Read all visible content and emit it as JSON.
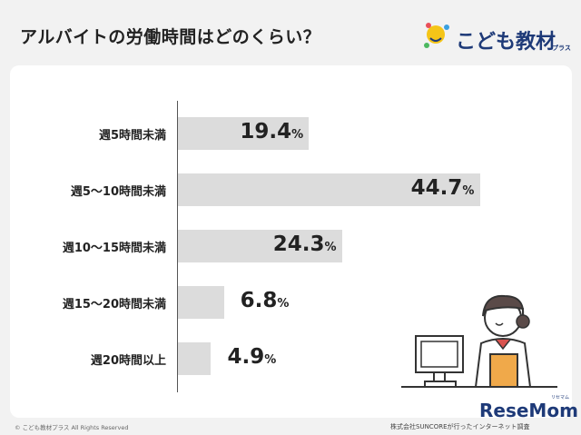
{
  "title": "アルバイトの労働時間はどのくらい？",
  "logo": {
    "text": "こども教材",
    "sub": "プラス"
  },
  "chart_data": {
    "type": "bar",
    "orientation": "horizontal",
    "categories": [
      "週5時間未満",
      "週5〜10時間未満",
      "週10〜15時間未満",
      "週15〜20時間未満",
      "週20時間以上"
    ],
    "values": [
      19.4,
      44.7,
      24.3,
      6.8,
      4.9
    ],
    "value_labels": [
      "19.4",
      "44.7",
      "24.3",
      "6.8",
      "4.9"
    ],
    "unit": "%",
    "bar_color": "#dcdcdc",
    "xlim": [
      0,
      50
    ],
    "grid": false
  },
  "footer": {
    "copyright": "© こども教材プラス All Rights Reserved",
    "source": "株式会社SUNCOREが行ったインターネット調査"
  },
  "watermark": {
    "text": "ReseMom",
    "sub": "リセマム"
  }
}
